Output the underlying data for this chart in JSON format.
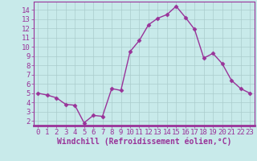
{
  "x": [
    0,
    1,
    2,
    3,
    4,
    5,
    6,
    7,
    8,
    9,
    10,
    11,
    12,
    13,
    14,
    15,
    16,
    17,
    18,
    19,
    20,
    21,
    22,
    23
  ],
  "y": [
    5.0,
    4.8,
    4.5,
    3.8,
    3.7,
    1.8,
    2.6,
    2.5,
    5.5,
    5.3,
    9.5,
    10.7,
    12.4,
    13.1,
    13.5,
    14.4,
    13.2,
    11.9,
    8.8,
    9.3,
    8.2,
    6.4,
    5.5,
    5.0
  ],
  "line_color": "#993399",
  "marker": "D",
  "marker_size": 2.5,
  "bg_color": "#c8eaea",
  "grid_color": "#aacccc",
  "xlabel": "Windchill (Refroidissement éolien,°C)",
  "ylabel": "",
  "xlim": [
    -0.5,
    23.5
  ],
  "ylim": [
    1.5,
    14.9
  ],
  "yticks": [
    2,
    3,
    4,
    5,
    6,
    7,
    8,
    9,
    10,
    11,
    12,
    13,
    14
  ],
  "xticks": [
    0,
    1,
    2,
    3,
    4,
    5,
    6,
    7,
    8,
    9,
    10,
    11,
    12,
    13,
    14,
    15,
    16,
    17,
    18,
    19,
    20,
    21,
    22,
    23
  ],
  "tick_color": "#993399",
  "label_color": "#993399",
  "axis_color": "#993399",
  "font_size": 6.5,
  "xlabel_fontsize": 7.0,
  "linewidth": 1.0
}
